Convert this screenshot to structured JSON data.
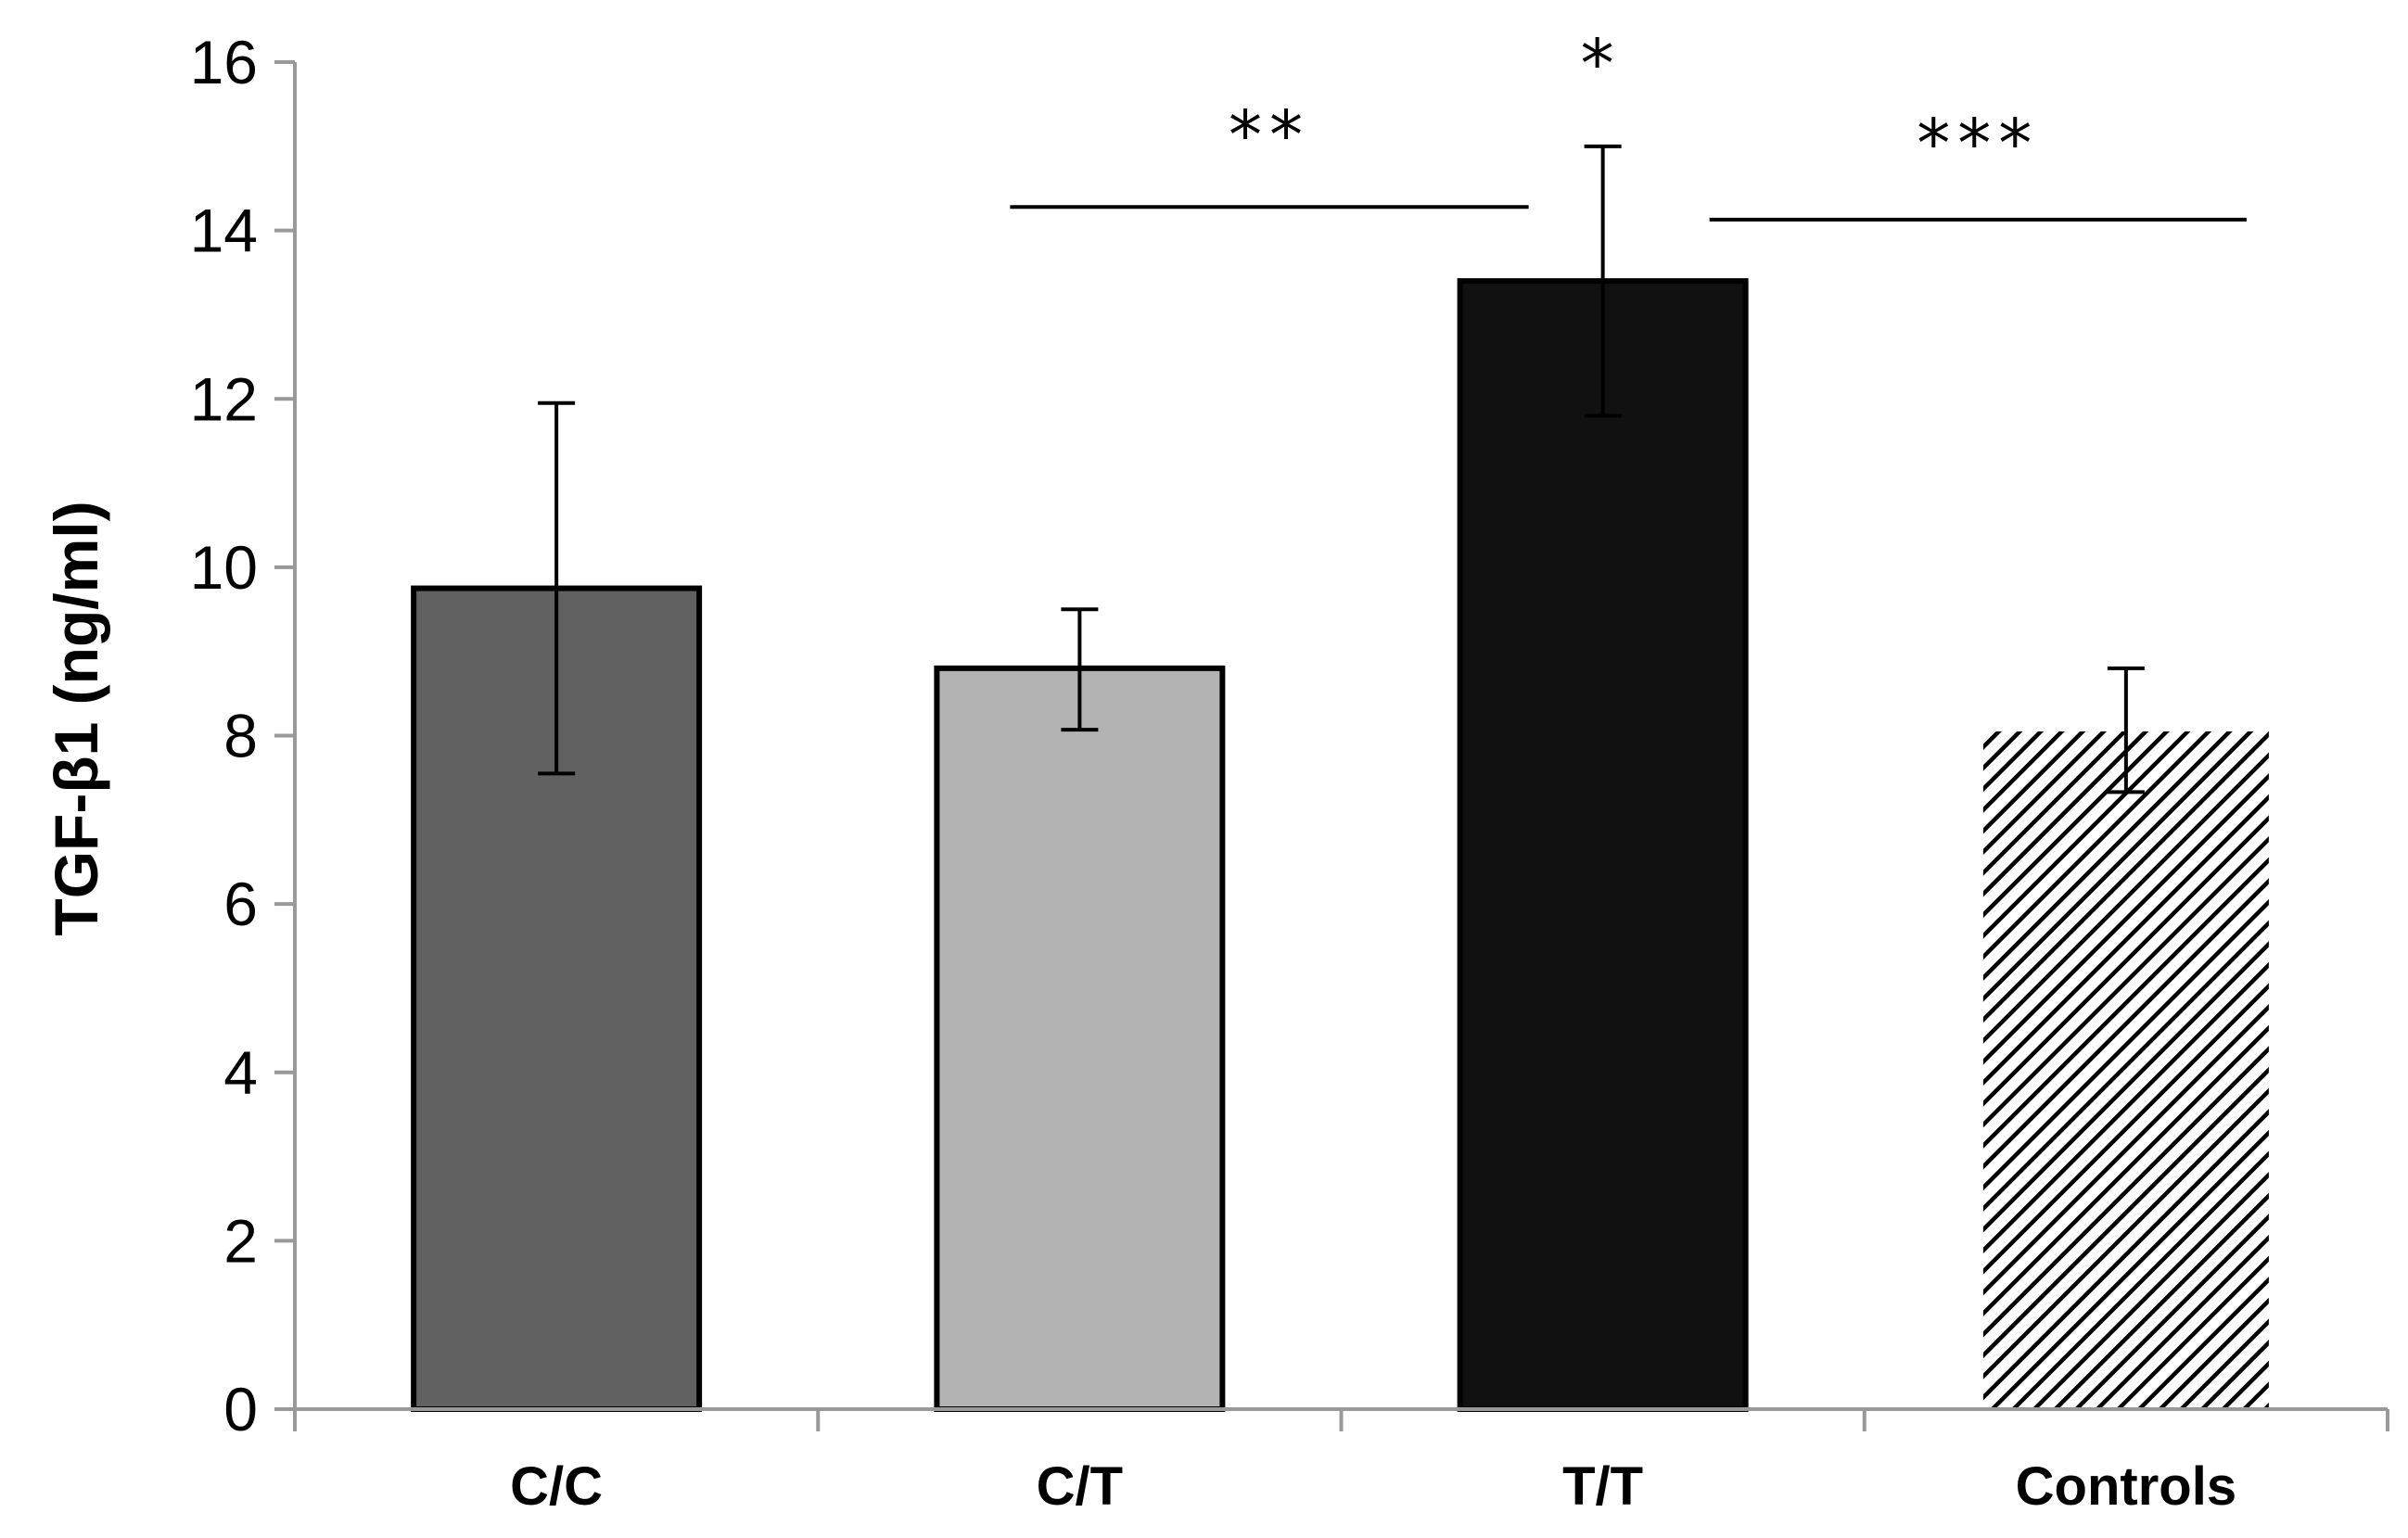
{
  "chart_data": {
    "type": "bar",
    "title": "",
    "xlabel": "",
    "ylabel": "TGF-β1 (ng/ml)",
    "ylim": [
      0,
      16
    ],
    "yticks": [
      "0",
      "2",
      "4",
      "6",
      "8",
      "10",
      "12",
      "14",
      "16"
    ],
    "categories": [
      "C/C",
      "C/T",
      "T/T",
      "Controls"
    ],
    "values": [
      9.75,
      8.8,
      13.4,
      8.05
    ],
    "error_high": [
      11.95,
      9.5,
      15.0,
      8.8
    ],
    "error_low": [
      7.55,
      8.07,
      11.8,
      7.33
    ],
    "fills": [
      "#616161",
      "#b3b3b3",
      "#111111",
      "hatch"
    ],
    "grid": false,
    "legend": "none",
    "significance": [
      {
        "label": "**",
        "from_category": 1,
        "to_category": 2,
        "line_value": 14.28,
        "label_value": 15.3
      },
      {
        "label": "*",
        "category": 2,
        "label_value": 16.5
      },
      {
        "label": "***",
        "from_category": 2,
        "to_category": 3,
        "line_value": 14.13,
        "label_value": 15.2
      }
    ],
    "colors": {
      "axis": "#999999",
      "bar_edge": "#000000",
      "error": "#000000"
    }
  }
}
